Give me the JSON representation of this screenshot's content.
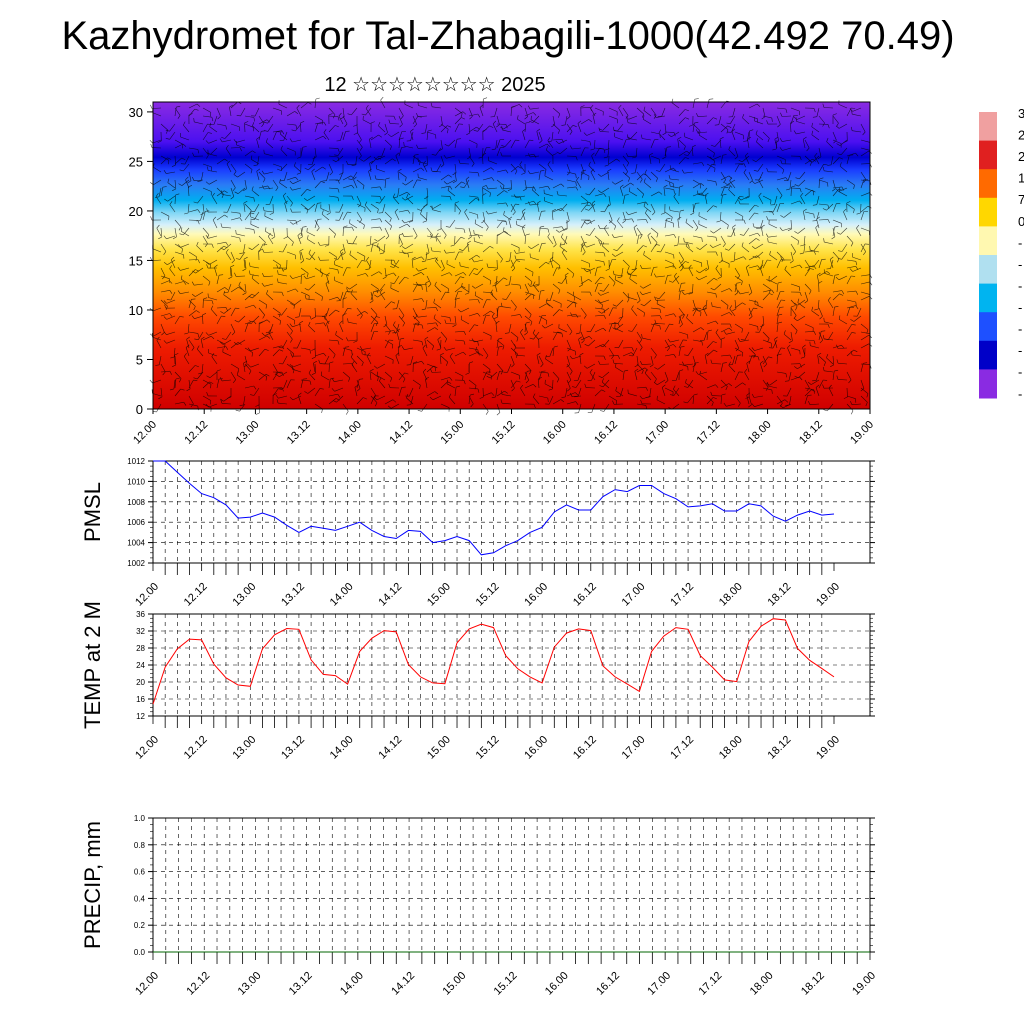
{
  "title": "Kazhydromet for Tal-Zhabagili-1000(42.492 70.49)",
  "subtitle": "12 ☆☆☆☆☆☆☆☆ 2025",
  "x_tick_labels": [
    "12.00",
    "12.12",
    "13.00",
    "13.12",
    "14.00",
    "14.12",
    "15.00",
    "15.12",
    "16.00",
    "16.12",
    "17.00",
    "17.12",
    "18.00",
    "18.12",
    "19.00"
  ],
  "colorbar": {
    "visible_labels": [
      "3",
      "2",
      "2",
      "1",
      "7",
      "0",
      "-",
      "-",
      "-",
      "-",
      "-",
      "-",
      "-",
      "-"
    ],
    "colors_top_to_bottom": [
      "#f0a0a0",
      "#e02020",
      "#ff6a00",
      "#ffd700",
      "#fff8b0",
      "#b0e0f0",
      "#00b4f0",
      "#1e50ff",
      "#0000c8",
      "#8a2be2"
    ]
  },
  "chart_data": [
    {
      "type": "heatmap",
      "title": "",
      "xlabel": "",
      "ylabel": "",
      "y_ticks": [
        0,
        5,
        10,
        15,
        20,
        25,
        30
      ],
      "ylim": [
        0,
        31
      ],
      "x": [
        "12.00",
        "12.12",
        "13.00",
        "13.12",
        "14.00",
        "14.12",
        "15.00",
        "15.12",
        "16.00",
        "16.12",
        "17.00",
        "17.12",
        "18.00",
        "18.12",
        "19.00"
      ],
      "description_values": "temperature shading decreasing with height; red near 0-8, yellow near 13-17, cyan near 20-22, blue near 25, purple above 27; overlaid wind barbs"
    },
    {
      "type": "line",
      "ylabel": "PMSL",
      "ylim": [
        1002,
        1012
      ],
      "y_ticks": [
        "1002",
        "1004",
        "1006",
        "1008",
        "1010",
        "1012"
      ],
      "x": [
        "12.00",
        "12.03",
        "12.06",
        "12.09",
        "12.12",
        "12.15",
        "12.18",
        "12.21",
        "13.00",
        "13.03",
        "13.06",
        "13.09",
        "13.12",
        "13.15",
        "13.18",
        "13.21",
        "14.00",
        "14.03",
        "14.06",
        "14.09",
        "14.12",
        "14.15",
        "14.18",
        "14.21",
        "15.00",
        "15.03",
        "15.06",
        "15.09",
        "15.12",
        "15.15",
        "15.18",
        "15.21",
        "16.00",
        "16.03",
        "16.06",
        "16.09",
        "16.12",
        "16.15",
        "16.18",
        "16.21",
        "17.00",
        "17.03",
        "17.06",
        "17.09",
        "17.12",
        "17.15",
        "17.18",
        "17.21",
        "18.00",
        "18.03",
        "18.06",
        "18.09",
        "18.12",
        "18.15",
        "18.18",
        "18.21",
        "19.00"
      ],
      "series": [
        {
          "color": "#0000ff",
          "values": [
            1012.0,
            1012.0,
            1010.9,
            1009.8,
            1008.8,
            1008.4,
            1007.7,
            1006.4,
            1006.5,
            1006.9,
            1006.5,
            1005.7,
            1005.0,
            1005.6,
            1005.4,
            1005.2,
            1005.6,
            1006.0,
            1005.2,
            1004.6,
            1004.4,
            1005.2,
            1005.1,
            1004.0,
            1004.2,
            1004.6,
            1004.2,
            1002.8,
            1003.0,
            1003.7,
            1004.2,
            1005.0,
            1005.5,
            1007.0,
            1007.7,
            1007.2,
            1007.2,
            1008.5,
            1009.2,
            1009.0,
            1009.6,
            1009.6,
            1008.8,
            1008.3,
            1007.5,
            1007.6,
            1007.8,
            1007.1,
            1007.1,
            1007.8,
            1007.6,
            1006.6,
            1006.1,
            1006.7,
            1007.1,
            1006.7,
            1006.8
          ]
        }
      ]
    },
    {
      "type": "line",
      "ylabel": "TEMP at 2 M",
      "ylim": [
        12,
        36
      ],
      "y_ticks": [
        "12",
        "16",
        "20",
        "24",
        "28",
        "32",
        "36"
      ],
      "x": [
        "12.00",
        "12.03",
        "12.06",
        "12.09",
        "12.12",
        "12.15",
        "12.18",
        "12.21",
        "13.00",
        "13.03",
        "13.06",
        "13.09",
        "13.12",
        "13.15",
        "13.18",
        "13.21",
        "14.00",
        "14.03",
        "14.06",
        "14.09",
        "14.12",
        "14.15",
        "14.18",
        "14.21",
        "15.00",
        "15.03",
        "15.06",
        "15.09",
        "15.12",
        "15.15",
        "15.18",
        "15.21",
        "16.00",
        "16.03",
        "16.06",
        "16.09",
        "16.12",
        "16.15",
        "16.18",
        "16.21",
        "17.00",
        "17.03",
        "17.06",
        "17.09",
        "17.12",
        "17.15",
        "17.18",
        "17.21",
        "18.00",
        "18.03",
        "18.06",
        "18.09",
        "18.12",
        "18.15",
        "18.18",
        "18.21",
        "19.00"
      ],
      "series": [
        {
          "color": "#ff0000",
          "values": [
            14.8,
            23.5,
            27.8,
            30.1,
            29.9,
            24.2,
            21.0,
            19.3,
            19.0,
            27.8,
            31.1,
            32.6,
            32.4,
            25.2,
            21.8,
            21.5,
            19.5,
            27.2,
            30.3,
            32.1,
            31.8,
            24.1,
            21.2,
            19.8,
            19.6,
            29.2,
            32.5,
            33.6,
            32.8,
            26.2,
            23.1,
            21.2,
            19.8,
            28.2,
            31.5,
            32.5,
            32.1,
            23.8,
            21.2,
            19.5,
            17.8,
            27.2,
            30.8,
            32.8,
            32.4,
            26.2,
            23.5,
            20.5,
            20.1,
            29.5,
            33.1,
            34.9,
            34.6,
            27.9,
            25.1,
            23.2,
            21.2
          ]
        }
      ]
    },
    {
      "type": "line",
      "ylabel": "PRECIP, mm",
      "ylim": [
        0,
        1
      ],
      "y_ticks": [
        "0.0",
        "0.2",
        "0.4",
        "0.6",
        "0.8",
        "1.0"
      ],
      "x": [
        "12.00",
        "12.12",
        "13.00",
        "13.12",
        "14.00",
        "14.12",
        "15.00",
        "15.12",
        "16.00",
        "16.12",
        "17.00",
        "17.12",
        "18.00",
        "18.12",
        "19.00"
      ],
      "series": [
        {
          "color": "#006400",
          "values": [
            0,
            0,
            0,
            0,
            0,
            0,
            0,
            0,
            0,
            0,
            0,
            0,
            0,
            0,
            0
          ]
        }
      ]
    }
  ]
}
